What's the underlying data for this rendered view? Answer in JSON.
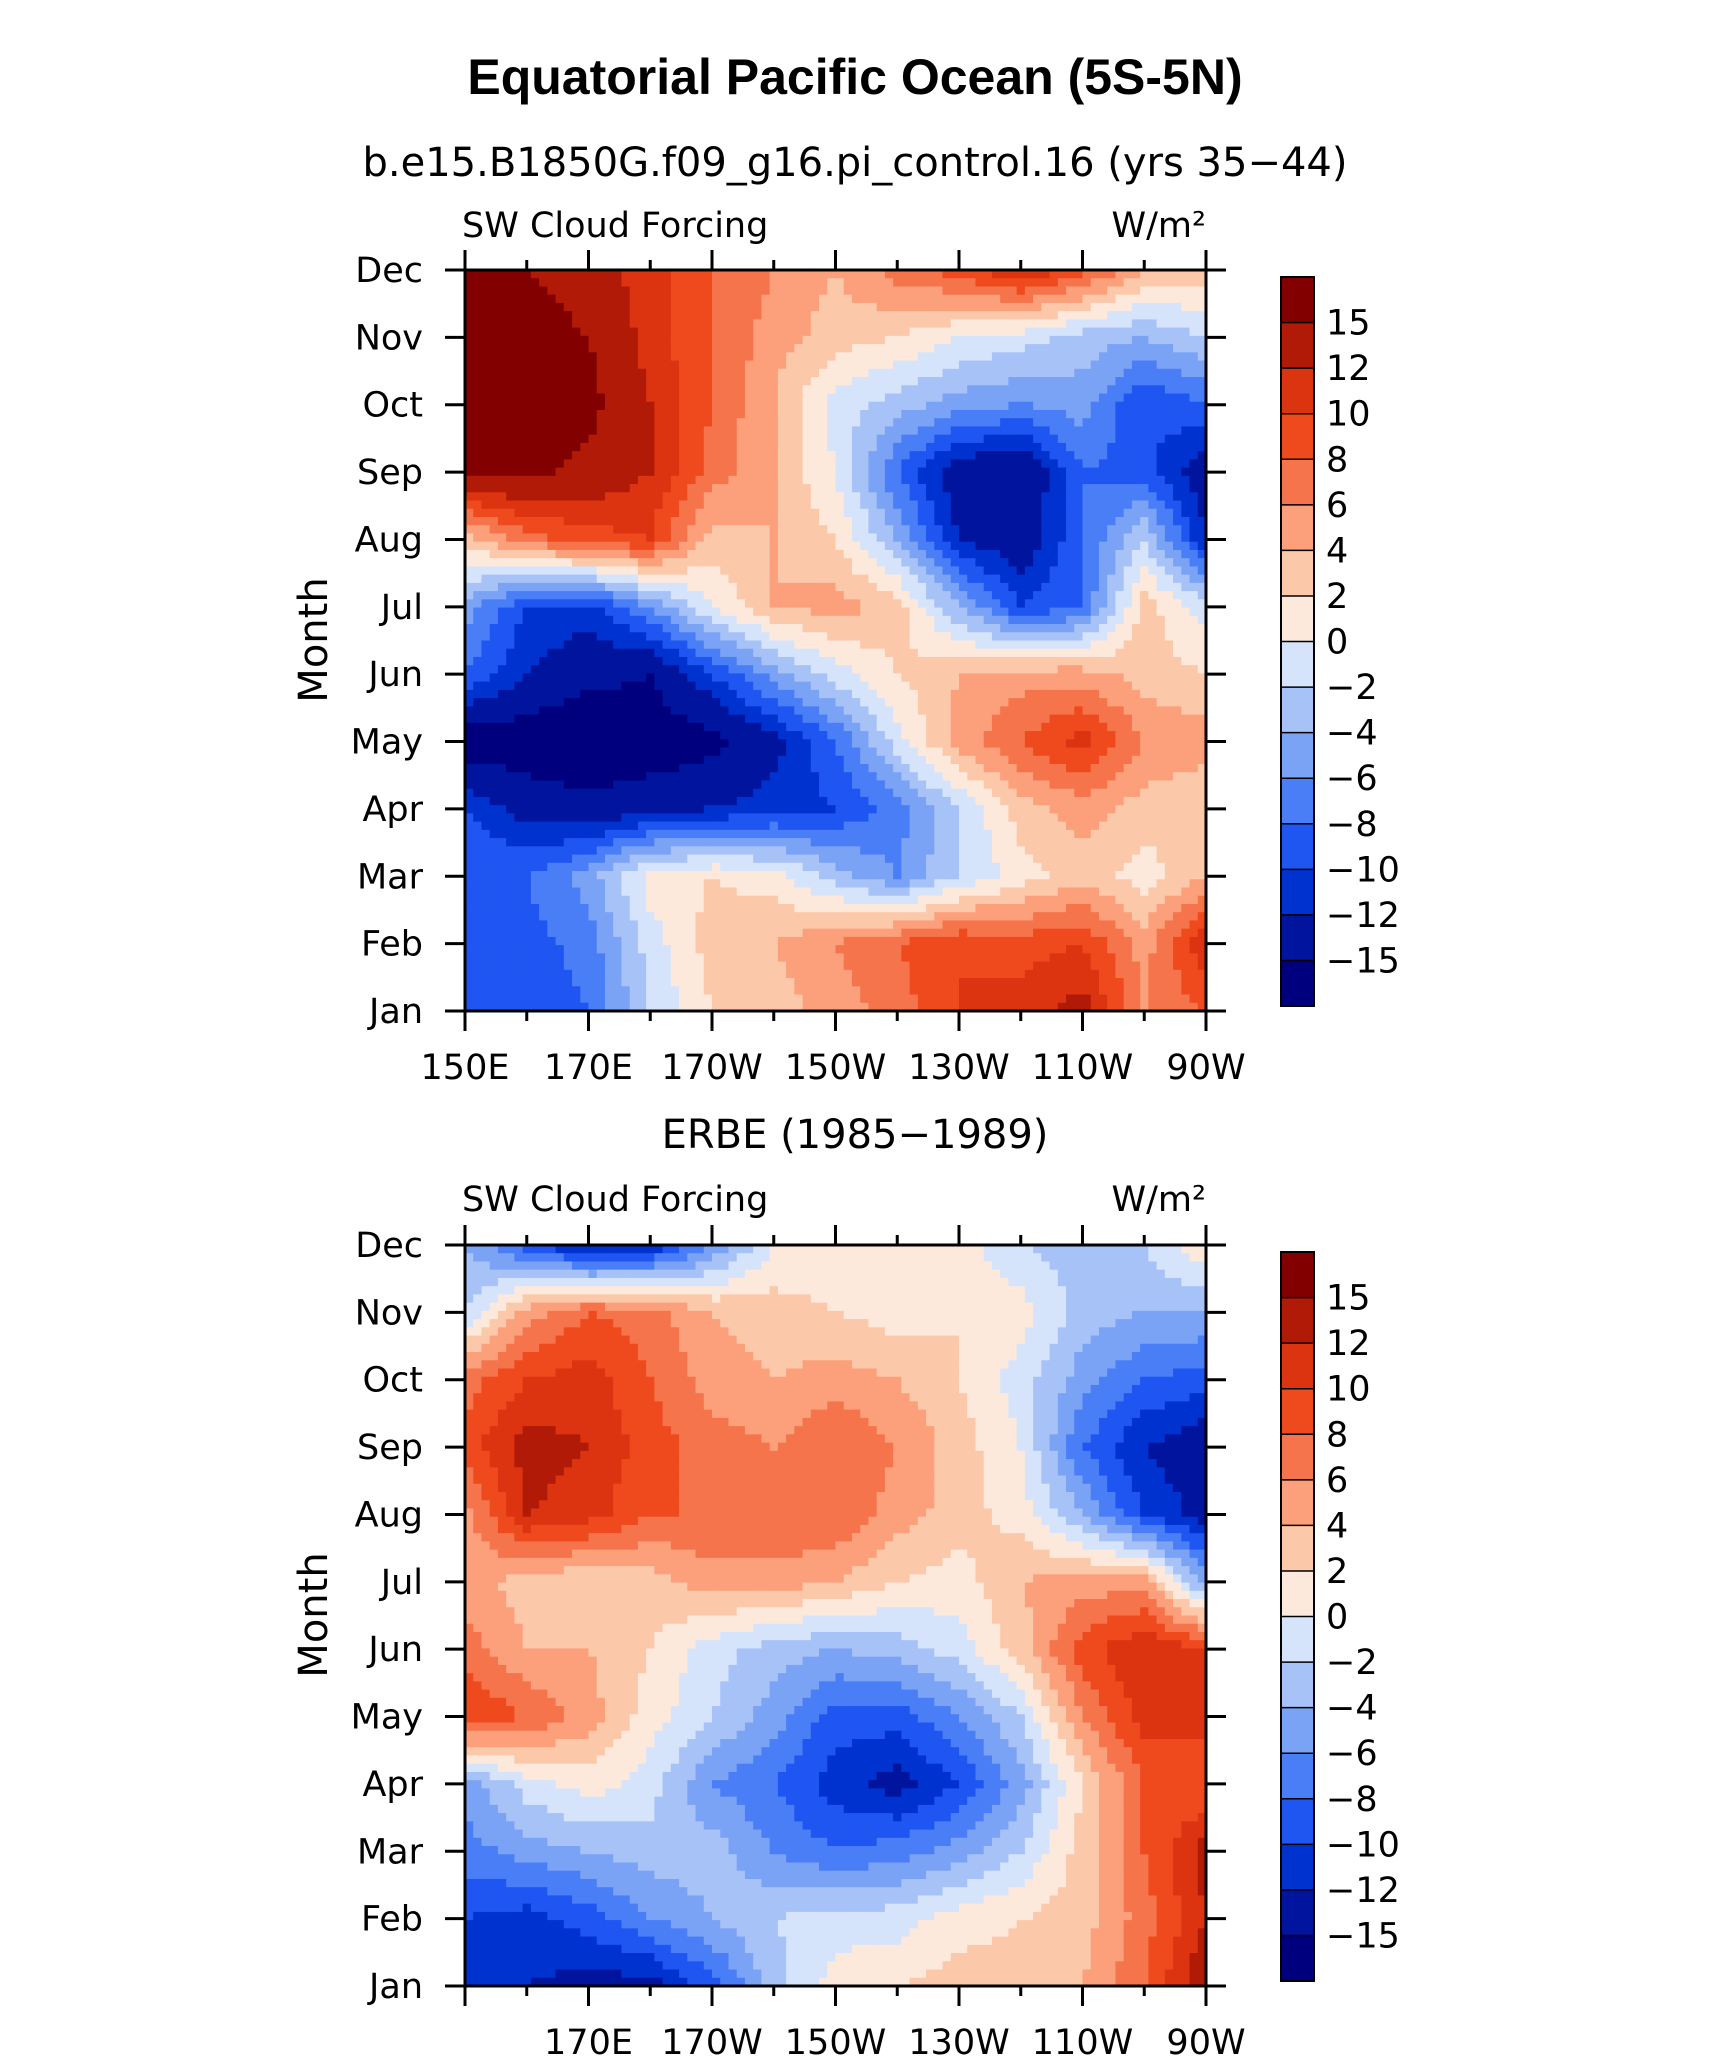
{
  "figure": {
    "title": "Equatorial Pacific Ocean (5S-5N)"
  },
  "chart_data": [
    {
      "type": "heatmap",
      "title": "b.e15.B1850G.f09_g16.pi_control.16 (yrs 35−44)",
      "left_string": "SW Cloud Forcing",
      "units": "W/m²",
      "ylabel": "Month",
      "x_tick_labels": [
        "150E",
        "170E",
        "170W",
        "150W",
        "130W",
        "110W",
        "90W"
      ],
      "y_tick_labels": [
        "Jan",
        "Feb",
        "Mar",
        "Apr",
        "May",
        "Jun",
        "Jul",
        "Aug",
        "Sep",
        "Oct",
        "Nov",
        "Dec"
      ],
      "x_range": [
        150,
        270
      ],
      "levels": [
        -15,
        -12,
        -10,
        -8,
        -6,
        -4,
        -2,
        0,
        2,
        4,
        6,
        8,
        10,
        12,
        15
      ],
      "level_labels": [
        "15",
        "12",
        "10",
        "8",
        "6",
        "4",
        "2",
        "0",
        "−2",
        "−4",
        "−6",
        "−8",
        "−10",
        "−12",
        "−15"
      ],
      "colors": [
        "#00007f",
        "#00149e",
        "#0032d0",
        "#1f55f1",
        "#4a7ef7",
        "#7aa2f5",
        "#a7c2f7",
        "#d5e4fb",
        "#fde9dc",
        "#fcc8aa",
        "#fba07a",
        "#f5744b",
        "#ef4a1e",
        "#dc3411",
        "#b01a06",
        "#820000"
      ],
      "x_lon": [
        150,
        160,
        170,
        180,
        190,
        200,
        210,
        220,
        230,
        240,
        250,
        260,
        270
      ],
      "z": [
        [
          -9,
          -10,
          -8,
          -2,
          2,
          3,
          5,
          7,
          10,
          11,
          13,
          6,
          8
        ],
        [
          -8,
          -9,
          -7,
          -1,
          3,
          4,
          6,
          8,
          10,
          9,
          10,
          5,
          12
        ],
        [
          -8,
          -8,
          -5,
          1,
          2,
          1,
          -3,
          -6,
          -2,
          1,
          3,
          1,
          4
        ],
        [
          -10,
          -13,
          -14,
          -13,
          -12,
          -11,
          -10,
          -7,
          -2,
          3,
          5,
          3,
          2
        ],
        [
          -17,
          -17,
          -18,
          -17,
          -16,
          -13,
          -8,
          -1,
          5,
          8,
          11,
          6,
          5
        ],
        [
          -8,
          -12,
          -14,
          -15,
          -10,
          -5,
          -1,
          2,
          4,
          5,
          5,
          3,
          2
        ],
        [
          -5,
          -10,
          -11,
          -6,
          0,
          4,
          5,
          3,
          -4,
          -10,
          -8,
          3,
          -1
        ],
        [
          3,
          7,
          9,
          10,
          3,
          4,
          2,
          -4,
          -12,
          -14,
          -8,
          -2,
          -12
        ],
        [
          15,
          16,
          14,
          12,
          7,
          4,
          0,
          -8,
          -14,
          -15,
          -8,
          -9,
          -14
        ],
        [
          17,
          17,
          16,
          12,
          8,
          4,
          -1,
          -3,
          -5,
          -6,
          -5,
          -10,
          -8
        ],
        [
          17,
          17,
          15,
          11,
          8,
          5,
          3,
          2,
          0,
          -1,
          -3,
          -4,
          -2
        ],
        [
          16,
          15,
          13,
          11,
          8,
          6,
          4,
          7,
          9,
          12,
          9,
          4,
          3
        ]
      ]
    },
    {
      "type": "heatmap",
      "title": "ERBE (1985−1989)",
      "left_string": "SW Cloud Forcing",
      "units": "W/m²",
      "ylabel": "Month",
      "x_tick_labels": [
        "170E",
        "170W",
        "150W",
        "130W",
        "110W",
        "90W"
      ],
      "y_tick_labels": [
        "Jan",
        "Feb",
        "Mar",
        "Apr",
        "May",
        "Jun",
        "Jul",
        "Aug",
        "Sep",
        "Oct",
        "Nov",
        "Dec"
      ],
      "x_range": [
        150,
        270
      ],
      "levels": [
        -15,
        -12,
        -10,
        -8,
        -6,
        -4,
        -2,
        0,
        2,
        4,
        6,
        8,
        10,
        12,
        15
      ],
      "level_labels": [
        "15",
        "12",
        "10",
        "8",
        "6",
        "4",
        "2",
        "0",
        "−2",
        "−4",
        "−6",
        "−8",
        "−10",
        "−12",
        "−15"
      ],
      "colors": [
        "#00007f",
        "#00149e",
        "#0032d0",
        "#1f55f1",
        "#4a7ef7",
        "#7aa2f5",
        "#a7c2f7",
        "#d5e4fb",
        "#fde9dc",
        "#fcc8aa",
        "#fba07a",
        "#f5744b",
        "#ef4a1e",
        "#dc3411",
        "#b01a06",
        "#820000"
      ],
      "x_lon": [
        150,
        160,
        170,
        180,
        190,
        200,
        210,
        220,
        230,
        240,
        250,
        260,
        270
      ],
      "z": [
        [
          -11,
          -12,
          -13,
          -13,
          -9,
          -3,
          1,
          2,
          3,
          3,
          4,
          8,
          14
        ],
        [
          -10,
          -11,
          -9,
          -6,
          -4,
          -2,
          -1,
          -1,
          1,
          2,
          3,
          7,
          12
        ],
        [
          -7,
          -5,
          -4,
          -3,
          -3,
          -6,
          -8,
          -7,
          -5,
          -2,
          3,
          8,
          13
        ],
        [
          -5,
          -1,
          1,
          -1,
          -6,
          -8,
          -11,
          -13,
          -10,
          -5,
          2,
          8,
          8
        ],
        [
          10,
          8,
          5,
          1,
          -2,
          -5,
          -9,
          -9,
          -6,
          -2,
          6,
          11,
          11
        ],
        [
          7,
          4,
          4,
          2,
          -1,
          -3,
          -4,
          -3,
          -1,
          3,
          9,
          12,
          10
        ],
        [
          5,
          3,
          2,
          3,
          5,
          5,
          4,
          2,
          1,
          4,
          5,
          5,
          -5
        ],
        [
          5,
          12,
          11,
          8,
          8,
          8,
          8,
          5,
          3,
          1,
          -4,
          -10,
          -13
        ],
        [
          9,
          13,
          12,
          9,
          7,
          6,
          8,
          6,
          3,
          0,
          -8,
          -12,
          -14
        ],
        [
          7,
          10,
          11,
          8,
          5,
          4,
          5,
          4,
          2,
          -1,
          -5,
          -8,
          -9
        ],
        [
          -2,
          5,
          8,
          7,
          4,
          3,
          2,
          1,
          2,
          1,
          -3,
          -4,
          -4
        ],
        [
          -4,
          -9,
          -13,
          -12,
          -6,
          0,
          1,
          1,
          1,
          -2,
          -3,
          -2,
          2
        ]
      ]
    }
  ]
}
